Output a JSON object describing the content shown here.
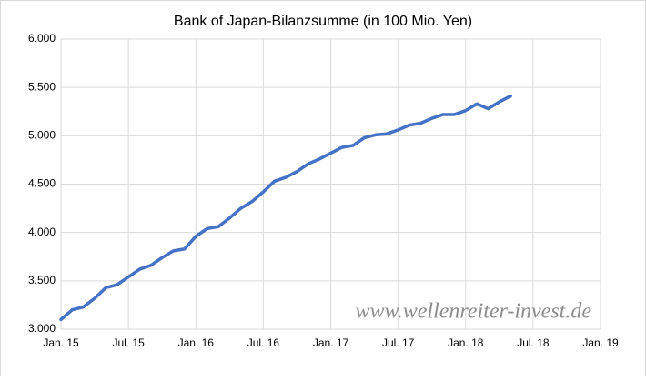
{
  "chart_data": {
    "type": "line",
    "title": "Bank of Japan-Bilanzsumme (in 100 Mio. Yen)",
    "annotation": "www.wellenreiter-invest.de",
    "x": [
      "2015-01",
      "2015-02",
      "2015-03",
      "2015-04",
      "2015-05",
      "2015-06",
      "2015-07",
      "2015-08",
      "2015-09",
      "2015-10",
      "2015-11",
      "2015-12",
      "2016-01",
      "2016-02",
      "2016-03",
      "2016-04",
      "2016-05",
      "2016-06",
      "2016-07",
      "2016-08",
      "2016-09",
      "2016-10",
      "2016-11",
      "2016-12",
      "2017-01",
      "2017-02",
      "2017-03",
      "2017-04",
      "2017-05",
      "2017-06",
      "2017-07",
      "2017-08",
      "2017-09",
      "2017-10",
      "2017-11",
      "2017-12",
      "2018-01",
      "2018-02",
      "2018-03",
      "2018-04",
      "2018-05"
    ],
    "series": [
      {
        "color": "#4472c4",
        "values": [
          3100,
          3200,
          3230,
          3320,
          3430,
          3460,
          3540,
          3620,
          3660,
          3740,
          3810,
          3830,
          3960,
          4040,
          4060,
          4150,
          4250,
          4320,
          4420,
          4530,
          4570,
          4630,
          4710,
          4760,
          4820,
          4880,
          4900,
          4980,
          5010,
          5020,
          5060,
          5110,
          5130,
          5180,
          5220,
          5220,
          5260,
          5330,
          5280,
          5350,
          5410
        ]
      }
    ],
    "xlim": [
      "2015-01",
      "2019-01"
    ],
    "xticks": [
      {
        "value": "2015-01",
        "label": "Jan. 15"
      },
      {
        "value": "2015-07",
        "label": "Jul. 15"
      },
      {
        "value": "2016-01",
        "label": "Jan. 16"
      },
      {
        "value": "2016-07",
        "label": "Jul. 16"
      },
      {
        "value": "2017-01",
        "label": "Jan. 17"
      },
      {
        "value": "2017-07",
        "label": "Jul. 17"
      },
      {
        "value": "2018-01",
        "label": "Jan. 18"
      },
      {
        "value": "2018-07",
        "label": "Jul. 18"
      },
      {
        "value": "2019-01",
        "label": "Jan. 19"
      }
    ],
    "ylim": [
      3000,
      6000
    ],
    "yticks": [
      {
        "value": 3000,
        "label": "3.000"
      },
      {
        "value": 3500,
        "label": "3.500"
      },
      {
        "value": 4000,
        "label": "4.000"
      },
      {
        "value": 4500,
        "label": "4.500"
      },
      {
        "value": 5000,
        "label": "5.000"
      },
      {
        "value": 5500,
        "label": "5.500"
      },
      {
        "value": 6000,
        "label": "6.000"
      }
    ],
    "grid": true
  }
}
